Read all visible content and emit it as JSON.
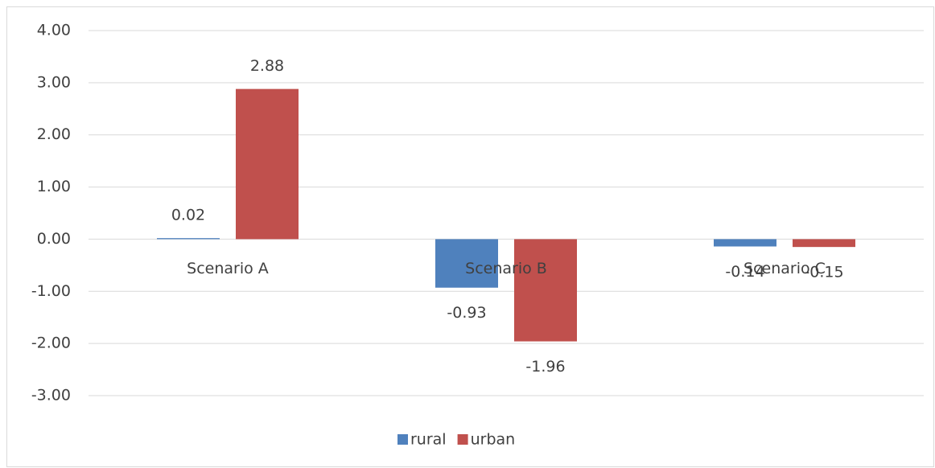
{
  "chart_data": {
    "type": "bar",
    "categories": [
      "Scenario A",
      "Scenario B",
      "Scenario C"
    ],
    "series": [
      {
        "name": "rural",
        "color": "#4f81bd",
        "values": [
          0.02,
          -0.93,
          -0.14
        ]
      },
      {
        "name": "urban",
        "color": "#c0504d",
        "values": [
          2.88,
          -1.96,
          -0.15
        ]
      }
    ],
    "ylim": [
      -3,
      4
    ],
    "yticks": [
      {
        "value": -3,
        "label": "-3.00"
      },
      {
        "value": -2,
        "label": "-2.00"
      },
      {
        "value": -1,
        "label": "-1.00"
      },
      {
        "value": 0,
        "label": "0.00"
      },
      {
        "value": 1,
        "label": "1.00"
      },
      {
        "value": 2,
        "label": "2.00"
      },
      {
        "value": 3,
        "label": "3.00"
      },
      {
        "value": 4,
        "label": "4.00"
      }
    ],
    "grid": true,
    "legend": "bottom"
  }
}
